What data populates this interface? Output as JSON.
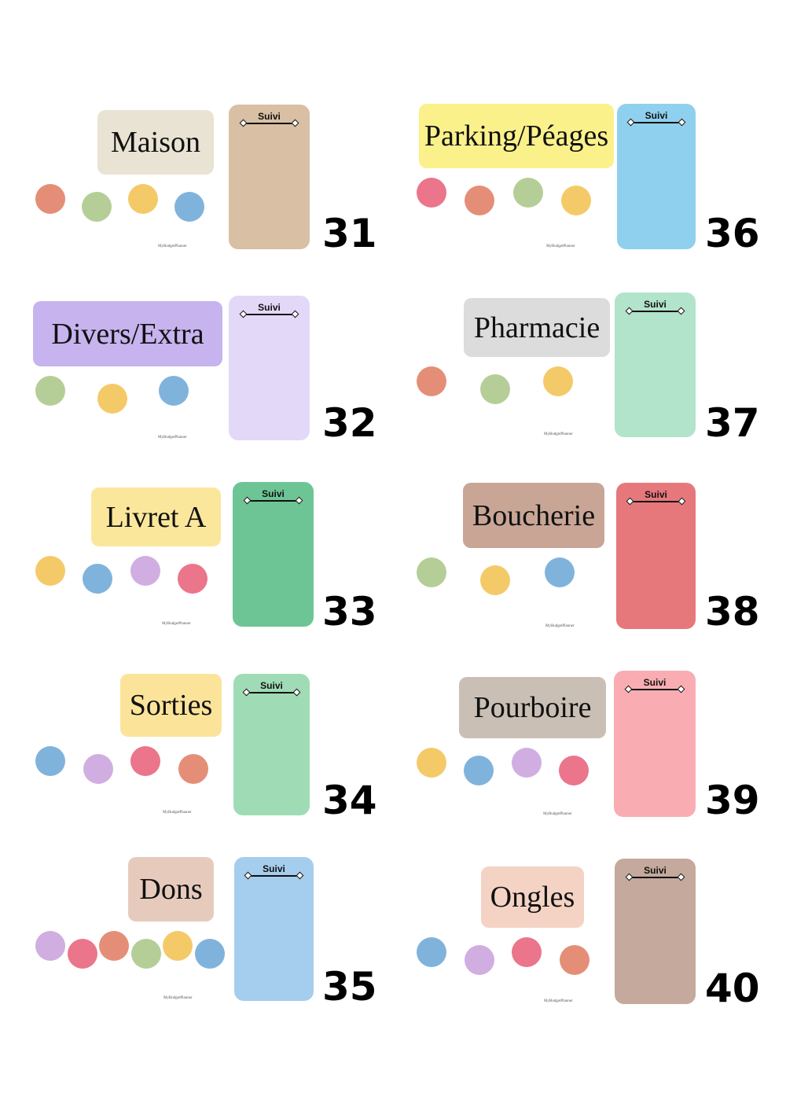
{
  "suivi_label": "Suivi",
  "watermark": "MyBudgetPlanner",
  "cards": [
    {
      "number": "31",
      "title": "Maison",
      "title_color": "#e9e3d3",
      "panel_color": "#d9bfa3",
      "icons": [
        "pendant-lamp-icon",
        "armchair-icon",
        "plant-icon",
        "hanging-plant-icon"
      ]
    },
    {
      "number": "32",
      "title": "Divers/Extra",
      "title_color": "#c7b3ee",
      "panel_color": "#e3d8f8",
      "icons": [
        "gift-icon",
        "burst-icon",
        "sparkles-icon"
      ]
    },
    {
      "number": "33",
      "title": "Livret A",
      "title_color": "#fbe79c",
      "panel_color": "#6dc595",
      "icons": [
        "banknotes-icon",
        "bank-phone-icon",
        "credit-card-icon",
        "money-bag-icon"
      ]
    },
    {
      "number": "34",
      "title": "Sorties",
      "title_color": "#fbe49a",
      "panel_color": "#9fdcb5",
      "icons": [
        "tickets-icon",
        "ferris-wheel-icon",
        "fireworks-icon",
        "zoo-icon"
      ]
    },
    {
      "number": "35",
      "title": "Dons",
      "title_color": "#e6cbbd",
      "panel_color": "#a5cdee",
      "icons": [
        "heart-hand-icon",
        "ribbon-icon",
        "ship-icon",
        "anchor-icon",
        "paw-icon",
        "bear-icon"
      ]
    },
    {
      "number": "36",
      "title": "Parking/Péages",
      "title_color": "#fbf18b",
      "panel_color": "#8fd0ee",
      "icons": [
        "barrier-icon",
        "parking-sign-icon",
        "car-icon",
        "ticket-hand-icon"
      ]
    },
    {
      "number": "37",
      "title": "Pharmacie",
      "title_color": "#dcdcdc",
      "panel_color": "#b2e3cb",
      "icons": [
        "pills-icon",
        "green-cross-icon",
        "medicine-box-icon"
      ]
    },
    {
      "number": "38",
      "title": "Boucherie",
      "title_color": "#c9a596",
      "panel_color": "#e6787c",
      "icons": [
        "meat-basket-icon",
        "butcher-shop-icon",
        "butcher-counter-icon"
      ]
    },
    {
      "number": "39",
      "title": "Pourboire",
      "title_color": "#c9bfb5",
      "panel_color": "#f9adb3",
      "icons": [
        "flying-money-icon",
        "piggy-bank-icon",
        "coins-icon",
        "cash-stack-icon"
      ]
    },
    {
      "number": "40",
      "title": "Ongles",
      "title_color": "#f4d3c5",
      "panel_color": "#c4a99c",
      "icons": [
        "nail-polish-icon",
        "manicured-hand-icon",
        "nail-swatches-icon",
        "nail-lamp-icon"
      ]
    }
  ]
}
